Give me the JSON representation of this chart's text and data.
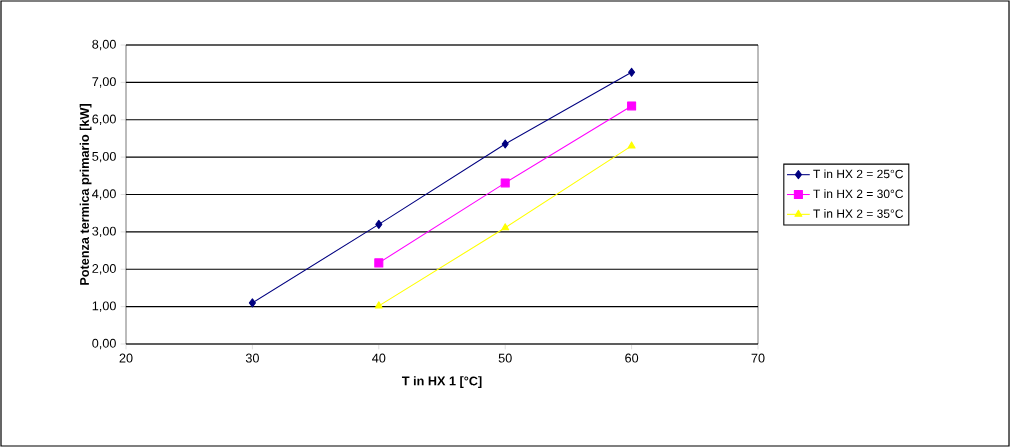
{
  "chart_data": {
    "type": "line",
    "xlabel": "T in HX 1 [°C]",
    "ylabel": "Potenza termica primario [kW]",
    "xlim": [
      20,
      70
    ],
    "xticks": [
      20,
      30,
      40,
      50,
      60,
      70
    ],
    "ylim": [
      0,
      8
    ],
    "yticks": [
      {
        "value": 0,
        "label": "0,00"
      },
      {
        "value": 1,
        "label": "1,00"
      },
      {
        "value": 2,
        "label": "2,00"
      },
      {
        "value": 3,
        "label": "3,00"
      },
      {
        "value": 4,
        "label": "4,00"
      },
      {
        "value": 5,
        "label": "5,00"
      },
      {
        "value": 6,
        "label": "6,00"
      },
      {
        "value": 7,
        "label": "7,00"
      },
      {
        "value": 8,
        "label": "8,00"
      }
    ],
    "grid": "y",
    "legend": "right",
    "line_style": "solid",
    "series": [
      {
        "name": "T in HX 2 = 25°C",
        "color": "#000080",
        "marker": "diamond",
        "x": [
          30,
          40,
          50,
          60
        ],
        "values": [
          1.1,
          3.2,
          5.35,
          7.27
        ]
      },
      {
        "name": "T in HX 2 = 30°C",
        "color": "#ff00ff",
        "marker": "square",
        "x": [
          40,
          50,
          60
        ],
        "values": [
          2.17,
          4.31,
          6.37
        ]
      },
      {
        "name": "T in HX 2 = 35°C",
        "color": "#ffff00",
        "marker": "triangle",
        "x": [
          40,
          50,
          60
        ],
        "values": [
          1.02,
          3.11,
          5.3
        ]
      }
    ]
  }
}
